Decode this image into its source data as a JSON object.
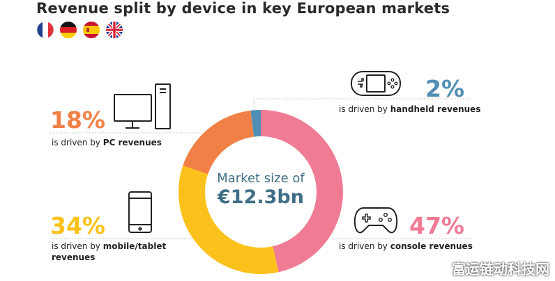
{
  "header": {
    "title": "Revenue split by device in key European markets",
    "flags": [
      "France",
      "Germany",
      "Spain",
      "United Kingdom"
    ]
  },
  "center": {
    "label": "Market size of",
    "value": "€12.3bn"
  },
  "segments": [
    {
      "name": "handheld",
      "pct_label": "2%",
      "prefix": "is driven by ",
      "bold": "handheld revenues",
      "bold2": "",
      "icon": "handheld-console-icon"
    },
    {
      "name": "console",
      "pct_label": "47%",
      "prefix": "is driven by ",
      "bold": "console revenues",
      "bold2": "",
      "icon": "gamepad-icon"
    },
    {
      "name": "mobile",
      "pct_label": "34%",
      "prefix": "is driven by ",
      "bold": "mobile/tablet",
      "bold2": "revenues",
      "icon": "smartphone-icon"
    },
    {
      "name": "pc",
      "pct_label": "18%",
      "prefix": "is driven by ",
      "bold": "PC revenues",
      "bold2": "",
      "icon": "desktop-pc-icon"
    }
  ],
  "watermark": "富运链动科技网",
  "chart_data": {
    "type": "pie",
    "title": "Revenue split by device in key European markets",
    "center_text": "Market size of €12.3bn",
    "categories": [
      "Handheld",
      "Console",
      "Mobile/tablet",
      "PC"
    ],
    "values": [
      2,
      47,
      34,
      18
    ],
    "unit": "%",
    "colors": [
      "#4f8fb3",
      "#f07b94",
      "#fcc21b",
      "#f08046"
    ]
  }
}
